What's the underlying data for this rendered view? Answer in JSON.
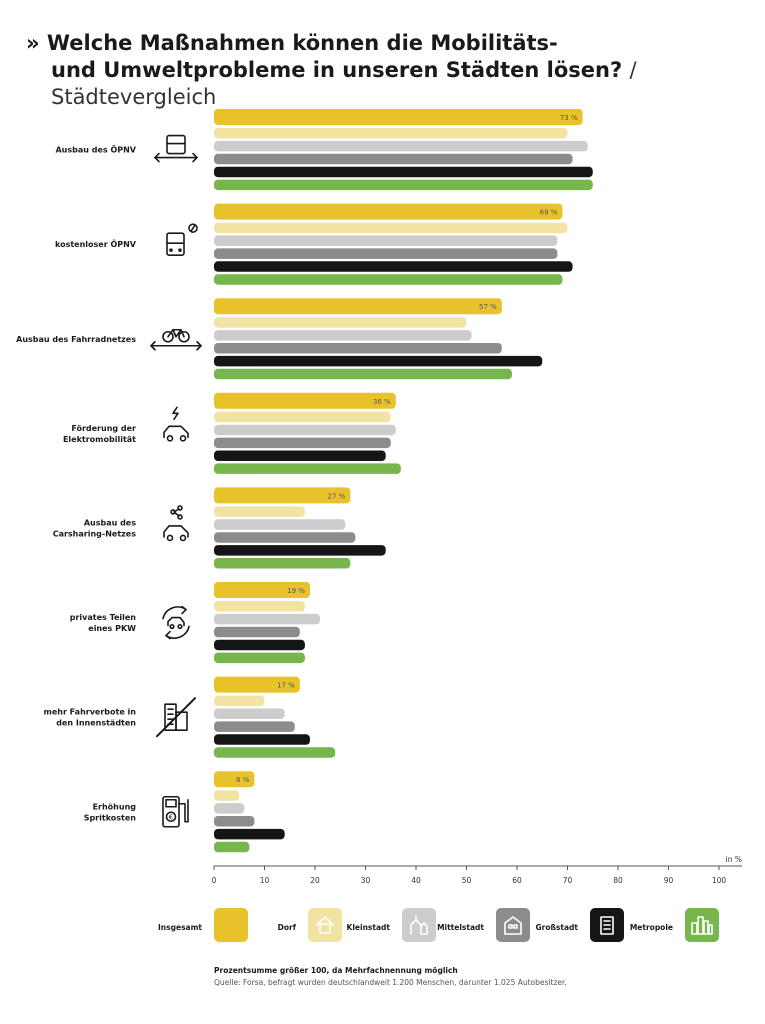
{
  "title": {
    "prefix": "»",
    "line1": "Welche Maßnahmen können die Mobilitäts-",
    "line2": "und Umweltprobleme in unseren Städten lösen?",
    "subtitle": "/ Städtevergleich"
  },
  "chart_data": {
    "type": "bar",
    "orientation": "horizontal",
    "xlabel": "in %",
    "xlim": [
      0,
      100
    ],
    "xticks": [
      0,
      10,
      20,
      30,
      40,
      50,
      60,
      70,
      80,
      90,
      100
    ],
    "categories": [
      {
        "label": "Ausbau des ÖPNV",
        "icon": "tram-arrow-icon"
      },
      {
        "label": "kostenloser ÖPNV",
        "icon": "bus-free-icon"
      },
      {
        "label": "Ausbau des Fahrradnetzes",
        "icon": "bicycle-arrow-icon"
      },
      {
        "label": "Förderung der\nElektromobilität",
        "icon": "electric-car-icon"
      },
      {
        "label": "Ausbau des\nCarsharing-Netzes",
        "icon": "carsharing-icon"
      },
      {
        "label": "privates Teilen\neines PKW",
        "icon": "car-cycle-icon"
      },
      {
        "label": "mehr Fahrverbote in\nden Innenstädten",
        "icon": "crossed-buildings-icon"
      },
      {
        "label": "Erhöhung\nSpritkosten",
        "icon": "fuel-pump-icon"
      }
    ],
    "value_labels": [
      "73 %",
      "69 %",
      "57 %",
      "36 %",
      "27 %",
      "19 %",
      "17 %",
      "8 %"
    ],
    "series": [
      {
        "name": "Insgesamt",
        "color": "#e8c22a",
        "values": [
          73,
          69,
          57,
          36,
          27,
          19,
          17,
          8
        ]
      },
      {
        "name": "Dorf",
        "color": "#f3e3a2",
        "values": [
          70,
          70,
          50,
          35,
          18,
          18,
          10,
          5
        ]
      },
      {
        "name": "Kleinstadt",
        "color": "#cccccc",
        "values": [
          74,
          68,
          51,
          36,
          26,
          21,
          14,
          6
        ]
      },
      {
        "name": "Mittelstadt",
        "color": "#8c8c8c",
        "values": [
          71,
          68,
          57,
          35,
          28,
          17,
          16,
          8
        ]
      },
      {
        "name": "Großstadt",
        "color": "#151515",
        "values": [
          75,
          71,
          65,
          34,
          34,
          18,
          19,
          14
        ]
      },
      {
        "name": "Metropole",
        "color": "#76b64d",
        "values": [
          75,
          69,
          59,
          37,
          27,
          18,
          24,
          7
        ]
      }
    ],
    "legend_position": "bottom",
    "grid": false
  },
  "legend_icons": [
    "",
    "house-icon",
    "church-icon",
    "townhouse-icon",
    "office-building-icon",
    "skyline-icon"
  ],
  "footnote": {
    "note": "Prozentsumme größer 100, da Mehrfachnennung möglich",
    "source": "Quelle: Forsa, befragt wurden deutschlandweit 1.200 Menschen, darunter 1.025 Autobesitzer."
  }
}
